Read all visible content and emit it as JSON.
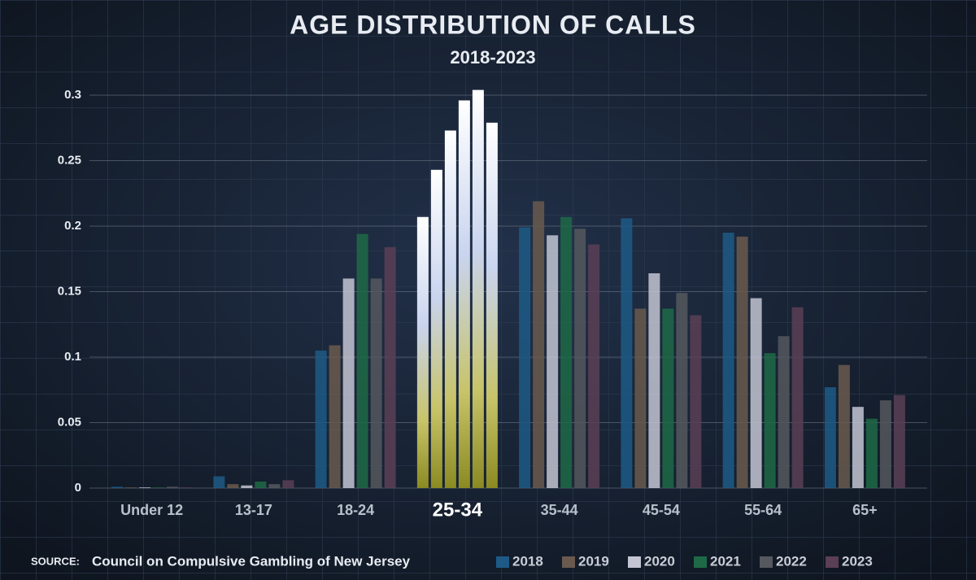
{
  "chart_data": {
    "type": "bar",
    "title": "AGE DISTRIBUTION OF CALLS",
    "subtitle": "2018-2023",
    "source_label": "SOURCE:",
    "source": "Council on Compulsive Gambling of New Jersey",
    "categories": [
      "Under 12",
      "13-17",
      "18-24",
      "25-34",
      "35-44",
      "45-54",
      "55-64",
      "65+"
    ],
    "highlight_index": 3,
    "series": [
      {
        "name": "2018",
        "color": "#1d5a86",
        "values": [
          0.001,
          0.009,
          0.105,
          0.207,
          0.199,
          0.206,
          0.195,
          0.077
        ]
      },
      {
        "name": "2019",
        "color": "#6a5a4e",
        "values": [
          0.0005,
          0.003,
          0.109,
          0.243,
          0.219,
          0.137,
          0.192,
          0.094
        ]
      },
      {
        "name": "2020",
        "color": "#c3c6d2",
        "values": [
          0.0005,
          0.002,
          0.16,
          0.273,
          0.193,
          0.164,
          0.145,
          0.062
        ]
      },
      {
        "name": "2021",
        "color": "#1e6a47",
        "values": [
          0.0005,
          0.005,
          0.194,
          0.296,
          0.207,
          0.137,
          0.103,
          0.053
        ]
      },
      {
        "name": "2022",
        "color": "#55585e",
        "values": [
          0.001,
          0.003,
          0.16,
          0.304,
          0.198,
          0.149,
          0.116,
          0.067
        ]
      },
      {
        "name": "2023",
        "color": "#5a3f56",
        "values": [
          0.0005,
          0.006,
          0.184,
          0.279,
          0.186,
          0.132,
          0.138,
          0.071
        ]
      }
    ],
    "ylim": [
      0,
      0.3
    ],
    "yticks": [
      0,
      0.05,
      0.1,
      0.15,
      0.2,
      0.25,
      0.3
    ],
    "grid": true
  }
}
